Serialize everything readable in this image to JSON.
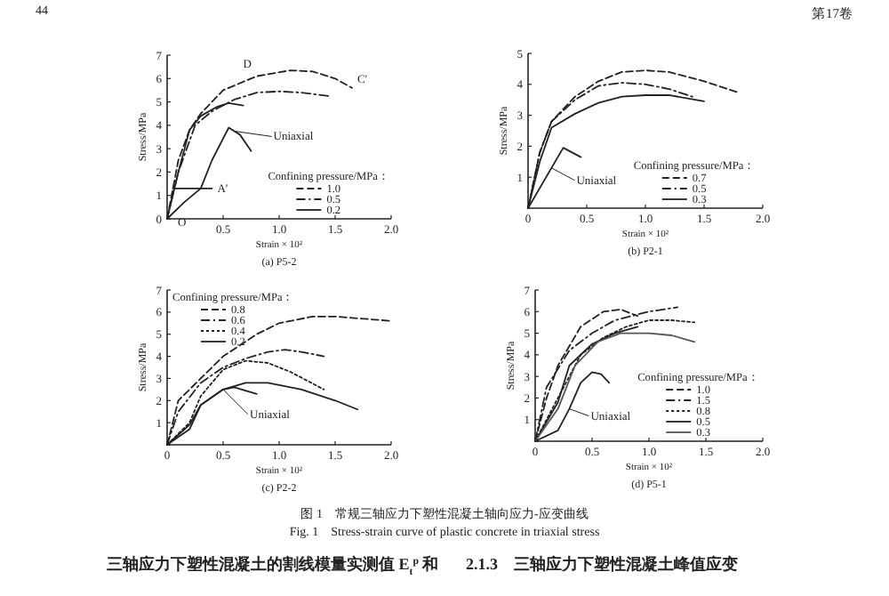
{
  "chart_data": [
    {
      "type": "line",
      "title": "(a) P5-2",
      "xlabel": "Strain × 10²",
      "ylabel": "Stress/MPa",
      "legend_title": "Confining pressure/MPa：",
      "legend": "bottom right",
      "xlim": [
        0,
        2
      ],
      "ylim": [
        0,
        7
      ],
      "xticks": [
        {
          "value": 0.5,
          "label": "0.5"
        },
        {
          "value": 1,
          "label": "1.0"
        },
        {
          "value": 1.5,
          "label": "1.5"
        },
        {
          "value": 2,
          "label": "2.0"
        }
      ],
      "yticks": [
        0,
        1,
        2,
        3,
        4,
        5,
        6,
        7
      ],
      "series": [
        {
          "name": "1.0",
          "color": "#222222",
          "line_style": "dashed",
          "x": [
            0,
            0.1,
            0.2,
            0.3,
            0.5,
            0.8,
            1.1,
            1.3,
            1.5,
            1.65
          ],
          "values": [
            0,
            2.5,
            3.8,
            4.5,
            5.5,
            6.1,
            6.35,
            6.3,
            6.0,
            5.6
          ]
        },
        {
          "name": "0.5",
          "color": "#222222",
          "line_style": "dashdot",
          "x": [
            0,
            0.1,
            0.25,
            0.4,
            0.6,
            0.8,
            1.0,
            1.2,
            1.45
          ],
          "values": [
            0,
            2,
            4.0,
            4.6,
            5.1,
            5.4,
            5.45,
            5.4,
            5.25
          ]
        },
        {
          "name": "0.2",
          "color": "#222222",
          "line_style": "solid",
          "x": [
            0,
            0.1,
            0.2,
            0.3,
            0.45,
            0.55,
            0.68
          ],
          "values": [
            0,
            2,
            3.8,
            4.4,
            4.8,
            4.95,
            4.85
          ]
        },
        {
          "color": "#222222",
          "line_style": "solid",
          "x": [
            0,
            0.15,
            0.3,
            0.4,
            0.55,
            0.65,
            0.75
          ],
          "values": [
            0,
            0.7,
            1.3,
            2.5,
            3.9,
            3.6,
            2.9
          ]
        },
        {
          "color": "#222222",
          "line_style": "solid",
          "x": [
            0.05,
            0.4
          ],
          "values": [
            1.3,
            1.3
          ]
        }
      ],
      "annotations": [
        "44",
        "第17卷",
        {
          "text": "Uniaxial",
          "x": 0.6,
          "y": 3.75
        },
        {
          "text": "O",
          "x": 0,
          "y": 0
        },
        {
          "text": "A′",
          "x": 0.4,
          "y": 1.3
        },
        {
          "text": "C′",
          "x": 1.65,
          "y": 5.6
        },
        {
          "text": "D",
          "x": 0.8,
          "y": 6.1
        }
      ]
    },
    {
      "type": "line",
      "title": "(b) P2-1",
      "xlabel": "Strain × 10²",
      "ylabel": "Stress/MPa",
      "legend_title": "Confining pressure/MPa：",
      "legend": "bottom right",
      "xlim": [
        0,
        2
      ],
      "ylim": [
        0,
        5
      ],
      "xticks": [
        0,
        0.5,
        {
          "value": 1,
          "label": "1.0"
        },
        1.5,
        {
          "value": 2,
          "label": "2.0"
        }
      ],
      "yticks": [
        1,
        2,
        3,
        4,
        5
      ],
      "series": [
        {
          "name": "0.7",
          "color": "#222222",
          "line_style": "dashed",
          "x": [
            0,
            0.1,
            0.2,
            0.4,
            0.6,
            0.8,
            1.0,
            1.2,
            1.5,
            1.78
          ],
          "values": [
            0,
            1.8,
            2.8,
            3.6,
            4.1,
            4.4,
            4.45,
            4.4,
            4.1,
            3.75
          ]
        },
        {
          "name": "0.5",
          "color": "#222222",
          "line_style": "dashdot",
          "x": [
            0,
            0.1,
            0.2,
            0.4,
            0.6,
            0.8,
            1.0,
            1.2,
            1.4
          ],
          "values": [
            0,
            1.8,
            2.8,
            3.5,
            3.95,
            4.05,
            4.0,
            3.85,
            3.6
          ]
        },
        {
          "name": "0.3",
          "color": "#222222",
          "line_style": "solid",
          "x": [
            0,
            0.1,
            0.2,
            0.4,
            0.6,
            0.8,
            1.0,
            1.2,
            1.5
          ],
          "values": [
            0,
            1.5,
            2.6,
            3.05,
            3.4,
            3.6,
            3.65,
            3.65,
            3.45
          ]
        },
        {
          "color": "#222222",
          "line_style": "solid",
          "x": [
            0,
            0.3,
            0.45
          ],
          "values": [
            0,
            1.95,
            1.65
          ]
        }
      ],
      "annotations": [
        {
          "text": "Uniaxial",
          "x": 0.2,
          "y": 1.3
        }
      ]
    },
    {
      "type": "line",
      "title": "(c) P2-2",
      "xlabel": "Strain × 10²",
      "ylabel": "Stress/MPa",
      "legend_title": "Confining pressure/MPa：",
      "legend": "top left",
      "xlim": [
        0,
        2
      ],
      "ylim": [
        0,
        7
      ],
      "xticks": [
        0,
        0.5,
        {
          "value": 1,
          "label": "1.0"
        },
        1.5,
        {
          "value": 2,
          "label": "2.0"
        }
      ],
      "yticks": [
        {
          "value": 0,
          "label": null
        },
        1,
        2,
        3,
        4,
        5,
        6,
        7
      ],
      "series": [
        {
          "name": "0.8",
          "color": "#222222",
          "line_style": "dashed",
          "x": [
            0,
            0.05,
            0.1,
            0.3,
            0.5,
            0.8,
            1.0,
            1.3,
            1.5,
            2.0
          ],
          "values": [
            0,
            1.0,
            2.0,
            3.0,
            4.0,
            5.0,
            5.5,
            5.8,
            5.8,
            5.6
          ]
        },
        {
          "name": "0.6",
          "color": "#222222",
          "line_style": "dashdot",
          "x": [
            0,
            0.1,
            0.3,
            0.5,
            0.7,
            0.9,
            1.05,
            1.2,
            1.4
          ],
          "values": [
            0,
            1.5,
            2.8,
            3.5,
            3.9,
            4.2,
            4.3,
            4.2,
            4.0
          ]
        },
        {
          "name": "0.4",
          "color": "#222222",
          "line_style": "dotted",
          "x": [
            0,
            0.2,
            0.3,
            0.5,
            0.7,
            0.9,
            1.1,
            1.4
          ],
          "values": [
            0,
            1.0,
            2.2,
            3.4,
            3.8,
            3.7,
            3.3,
            2.5
          ]
        },
        {
          "name": "0.2",
          "color": "#222222",
          "line_style": "solid",
          "x": [
            0,
            0.2,
            0.3,
            0.5,
            0.7,
            0.9,
            1.2,
            1.5,
            1.7
          ],
          "values": [
            0,
            0.9,
            1.8,
            2.5,
            2.8,
            2.8,
            2.5,
            2.0,
            1.6
          ]
        },
        {
          "color": "#222222",
          "line_style": "solid",
          "x": [
            0,
            0.2,
            0.3,
            0.5,
            0.6,
            0.8
          ],
          "values": [
            0,
            0.7,
            1.8,
            2.5,
            2.6,
            2.3
          ]
        }
      ],
      "annotations": [
        {
          "text": "Uniaxial",
          "x": 0.5,
          "y": 2.5
        }
      ]
    },
    {
      "type": "line",
      "title": "(d) P5-1",
      "xlabel": "Strain × 10²",
      "ylabel": "Stress/MPa",
      "legend_title": "Confining pressure/MPa：",
      "legend": "bottom right",
      "xlim": [
        0,
        2
      ],
      "ylim": [
        0,
        7
      ],
      "xticks": [
        0,
        0.5,
        {
          "value": 1,
          "label": "1.0"
        },
        1.5,
        {
          "value": 2,
          "label": "2.0"
        }
      ],
      "yticks": [
        {
          "value": 0,
          "label": null
        },
        1,
        2,
        3,
        4,
        5,
        6,
        7
      ],
      "series": [
        {
          "name": "1.0",
          "color": "#222222",
          "line_style": "dashed",
          "x": [
            0,
            0.1,
            0.2,
            0.4,
            0.6,
            0.75,
            0.9
          ],
          "values": [
            0,
            2.0,
            3.5,
            5.3,
            6.0,
            6.1,
            5.8
          ]
        },
        {
          "name": "1.5",
          "color": "#222222",
          "line_style": "dashdot",
          "x": [
            0,
            0.1,
            0.3,
            0.5,
            0.7,
            1.0,
            1.25
          ],
          "values": [
            0,
            2.5,
            4.2,
            5.0,
            5.6,
            6.0,
            6.2
          ]
        },
        {
          "name": "0.8",
          "color": "#222222",
          "line_style": "dotted",
          "x": [
            0,
            0.2,
            0.4,
            0.6,
            0.8,
            1.0,
            1.2,
            1.4
          ],
          "values": [
            0,
            2.0,
            4.0,
            4.8,
            5.3,
            5.6,
            5.6,
            5.5
          ]
        },
        {
          "name": "0.5",
          "color": "#222222",
          "line_style": "solid",
          "x": [
            0,
            0.2,
            0.3,
            0.5,
            0.7,
            0.9
          ],
          "values": [
            0,
            1.8,
            3.5,
            4.5,
            5.0,
            5.3
          ]
        },
        {
          "name": "0.3",
          "color": "#555555",
          "line_style": "solid",
          "x": [
            0,
            0.2,
            0.35,
            0.55,
            0.75,
            1.0,
            1.2,
            1.4
          ],
          "values": [
            0,
            1.5,
            3.5,
            4.6,
            5.0,
            5.0,
            4.9,
            4.6
          ]
        },
        {
          "color": "#222222",
          "line_style": "solid",
          "x": [
            0,
            0.2,
            0.3,
            0.4,
            0.5,
            0.58,
            0.65
          ],
          "values": [
            0,
            0.5,
            1.5,
            2.7,
            3.2,
            3.1,
            2.7
          ]
        }
      ],
      "annotations": [
        "图 1　常规三轴应力下塑性混凝土轴向应力-应变曲线",
        "Fig. 1　Stress-strain curve of plastic concrete in triaxial stress",
        "三轴应力下塑性混凝土的割线模量实测值 E$_{t}$$^{p}$ 和",
        "2.1.3　三轴应力下塑性混凝土峰值应变",
        {
          "text": "Uniaxial",
          "x": 0.3,
          "y": 1.5
        }
      ]
    }
  ]
}
